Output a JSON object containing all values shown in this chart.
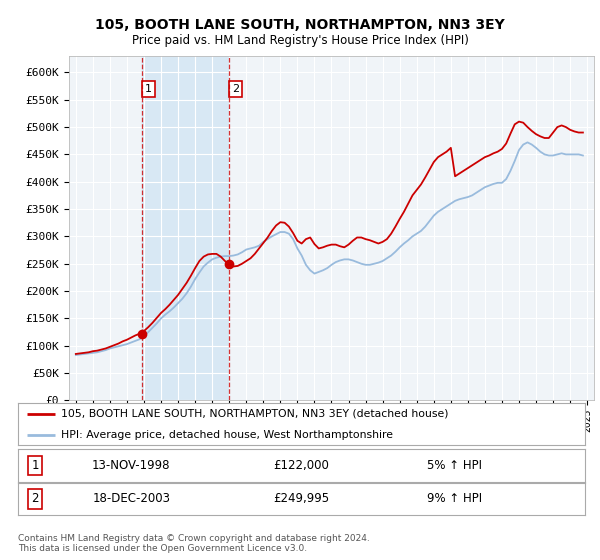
{
  "title": "105, BOOTH LANE SOUTH, NORTHAMPTON, NN3 3EY",
  "subtitle": "Price paid vs. HM Land Registry's House Price Index (HPI)",
  "ylabel_ticks": [
    "£0",
    "£50K",
    "£100K",
    "£150K",
    "£200K",
    "£250K",
    "£300K",
    "£350K",
    "£400K",
    "£450K",
    "£500K",
    "£550K",
    "£600K"
  ],
  "ylim": [
    0,
    630000
  ],
  "ytick_vals": [
    0,
    50000,
    100000,
    150000,
    200000,
    250000,
    300000,
    350000,
    400000,
    450000,
    500000,
    550000,
    600000
  ],
  "transaction_labels": [
    {
      "num": "1",
      "date": "13-NOV-1998",
      "price": "£122,000",
      "hpi_pct": "5% ↑ HPI"
    },
    {
      "num": "2",
      "date": "18-DEC-2003",
      "price": "£249,995",
      "hpi_pct": "9% ↑ HPI"
    }
  ],
  "legend_line1": "105, BOOTH LANE SOUTH, NORTHAMPTON, NN3 3EY (detached house)",
  "legend_line2": "HPI: Average price, detached house, West Northamptonshire",
  "footer": "Contains HM Land Registry data © Crown copyright and database right 2024.\nThis data is licensed under the Open Government Licence v3.0.",
  "line_color_red": "#cc0000",
  "line_color_blue": "#99bbdd",
  "background_color": "#ffffff",
  "plot_bg_color": "#f0f4f8",
  "grid_color": "#ffffff",
  "vline_color": "#cc0000",
  "highlight_bg_color": "#d8e8f4",
  "t1_year": 1998.875,
  "t2_year": 2003.958,
  "t1_price": 122000,
  "t2_price": 249995,
  "years": [
    1995.0,
    1995.25,
    1995.5,
    1995.75,
    1996.0,
    1996.25,
    1996.5,
    1996.75,
    1997.0,
    1997.25,
    1997.5,
    1997.75,
    1998.0,
    1998.25,
    1998.5,
    1998.75,
    1999.0,
    1999.25,
    1999.5,
    1999.75,
    2000.0,
    2000.25,
    2000.5,
    2000.75,
    2001.0,
    2001.25,
    2001.5,
    2001.75,
    2002.0,
    2002.25,
    2002.5,
    2002.75,
    2003.0,
    2003.25,
    2003.5,
    2003.75,
    2004.0,
    2004.25,
    2004.5,
    2004.75,
    2005.0,
    2005.25,
    2005.5,
    2005.75,
    2006.0,
    2006.25,
    2006.5,
    2006.75,
    2007.0,
    2007.25,
    2007.5,
    2007.75,
    2008.0,
    2008.25,
    2008.5,
    2008.75,
    2009.0,
    2009.25,
    2009.5,
    2009.75,
    2010.0,
    2010.25,
    2010.5,
    2010.75,
    2011.0,
    2011.25,
    2011.5,
    2011.75,
    2012.0,
    2012.25,
    2012.5,
    2012.75,
    2013.0,
    2013.25,
    2013.5,
    2013.75,
    2014.0,
    2014.25,
    2014.5,
    2014.75,
    2015.0,
    2015.25,
    2015.5,
    2015.75,
    2016.0,
    2016.25,
    2016.5,
    2016.75,
    2017.0,
    2017.25,
    2017.5,
    2017.75,
    2018.0,
    2018.25,
    2018.5,
    2018.75,
    2019.0,
    2019.25,
    2019.5,
    2019.75,
    2020.0,
    2020.25,
    2020.5,
    2020.75,
    2021.0,
    2021.25,
    2021.5,
    2021.75,
    2022.0,
    2022.25,
    2022.5,
    2022.75,
    2023.0,
    2023.25,
    2023.5,
    2023.75,
    2024.0,
    2024.25,
    2024.5,
    2024.75
  ],
  "hpi_vals": [
    83000,
    84000,
    85000,
    86000,
    87000,
    88000,
    90000,
    92000,
    95000,
    97000,
    99000,
    101000,
    103000,
    106000,
    109000,
    112000,
    118000,
    125000,
    133000,
    141000,
    150000,
    157000,
    163000,
    170000,
    178000,
    186000,
    196000,
    208000,
    222000,
    234000,
    245000,
    252000,
    258000,
    261000,
    263000,
    264000,
    264000,
    265000,
    267000,
    271000,
    276000,
    278000,
    280000,
    283000,
    290000,
    295000,
    300000,
    304000,
    308000,
    308000,
    305000,
    295000,
    278000,
    265000,
    248000,
    238000,
    232000,
    235000,
    238000,
    242000,
    248000,
    253000,
    256000,
    258000,
    258000,
    256000,
    253000,
    250000,
    248000,
    248000,
    250000,
    252000,
    255000,
    260000,
    265000,
    272000,
    280000,
    287000,
    293000,
    300000,
    305000,
    310000,
    318000,
    328000,
    338000,
    345000,
    350000,
    355000,
    360000,
    365000,
    368000,
    370000,
    372000,
    375000,
    380000,
    385000,
    390000,
    393000,
    396000,
    398000,
    398000,
    405000,
    420000,
    438000,
    458000,
    468000,
    472000,
    468000,
    462000,
    455000,
    450000,
    448000,
    448000,
    450000,
    452000,
    450000,
    450000,
    450000,
    450000,
    448000
  ],
  "red_vals": [
    85000,
    86000,
    87000,
    88000,
    90000,
    91000,
    93000,
    95000,
    98000,
    101000,
    104000,
    108000,
    111000,
    115000,
    119000,
    122000,
    127000,
    134000,
    142000,
    151000,
    160000,
    167000,
    175000,
    184000,
    193000,
    204000,
    215000,
    228000,
    242000,
    255000,
    263000,
    267000,
    268000,
    268000,
    263000,
    255000,
    248000,
    245000,
    246000,
    250000,
    255000,
    260000,
    268000,
    278000,
    288000,
    298000,
    310000,
    320000,
    326000,
    325000,
    318000,
    306000,
    292000,
    287000,
    295000,
    298000,
    286000,
    278000,
    280000,
    283000,
    285000,
    285000,
    282000,
    280000,
    285000,
    292000,
    298000,
    298000,
    295000,
    293000,
    290000,
    287000,
    290000,
    295000,
    305000,
    318000,
    332000,
    345000,
    360000,
    375000,
    385000,
    395000,
    408000,
    422000,
    436000,
    445000,
    450000,
    455000,
    462000,
    410000,
    415000,
    420000,
    425000,
    430000,
    435000,
    440000,
    445000,
    448000,
    452000,
    455000,
    460000,
    470000,
    488000,
    505000,
    510000,
    508000,
    500000,
    493000,
    487000,
    483000,
    480000,
    480000,
    490000,
    500000,
    503000,
    500000,
    495000,
    492000,
    490000,
    490000
  ]
}
